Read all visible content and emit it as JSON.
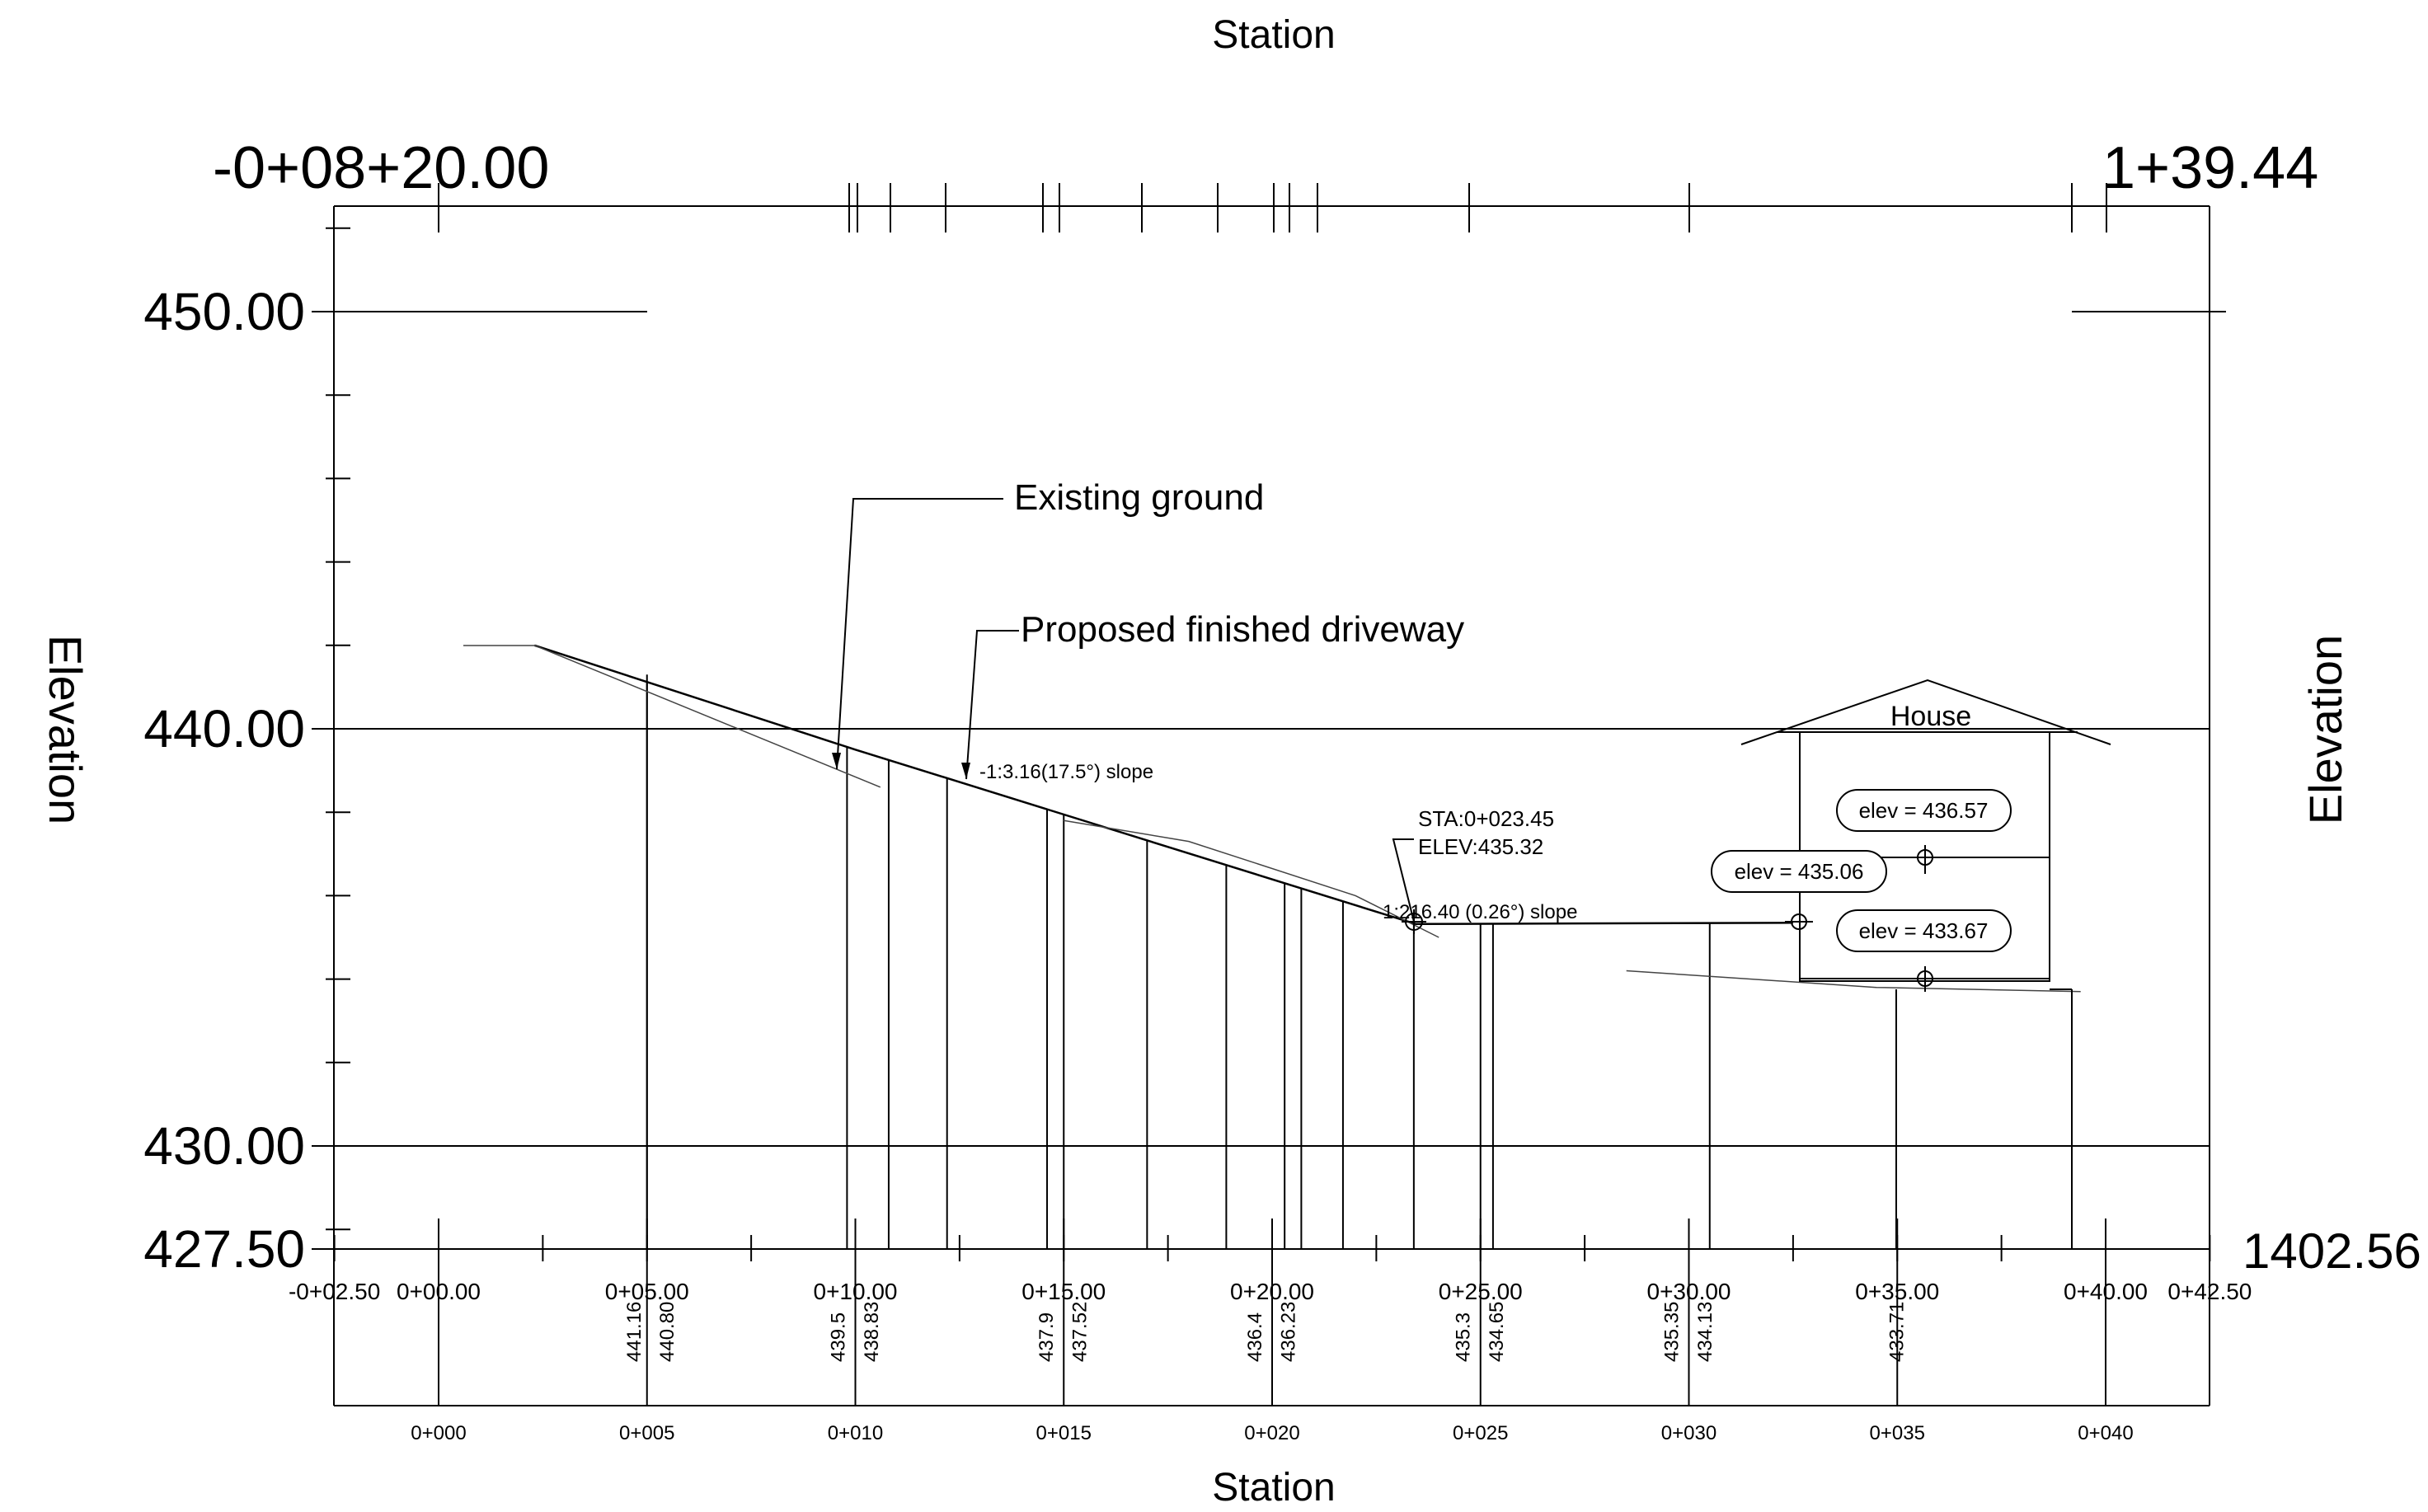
{
  "axes": {
    "top_title": "Station",
    "bottom_title": "Station",
    "left_title": "Elevation",
    "right_title": "Elevation",
    "top_left_label": "-0+08+20.00",
    "top_right_label": "1+39.44",
    "right_bottom_label": "1402.56",
    "elevation_labels": [
      "450.00",
      "440.00",
      "430.00",
      "427.50"
    ],
    "station_labels": [
      "-0+02.50",
      "0+00.00",
      "0+05.00",
      "0+10.00",
      "0+15.00",
      "0+20.00",
      "0+25.00",
      "0+30.00",
      "0+35.00",
      "0+40.00",
      "0+42.50"
    ],
    "band_station_labels": [
      "0+000",
      "0+005",
      "0+010",
      "0+015",
      "0+020",
      "0+025",
      "0+030",
      "0+035",
      "0+040"
    ]
  },
  "elevation_band": [
    {
      "station": 5.0,
      "text": "441.16"
    },
    {
      "station": 5.8,
      "text": "440.80"
    },
    {
      "station": 9.9,
      "text": "439.5"
    },
    {
      "station": 10.7,
      "text": "438.83"
    },
    {
      "station": 14.9,
      "text": "437.9"
    },
    {
      "station": 15.7,
      "text": "437.52"
    },
    {
      "station": 19.9,
      "text": "436.4"
    },
    {
      "station": 20.7,
      "text": "436.23"
    },
    {
      "station": 24.9,
      "text": "435.3"
    },
    {
      "station": 25.7,
      "text": "434.65"
    },
    {
      "station": 29.9,
      "text": "435.35"
    },
    {
      "station": 30.7,
      "text": "434.13"
    },
    {
      "station": 35.3,
      "text": "433.71"
    }
  ],
  "annotations": {
    "existing_ground": "Existing ground",
    "proposed_driveway": "Proposed finished driveway",
    "slope_1": "-1:3.16(17.5°) slope",
    "sta_label": "STA:0+023.45",
    "elev_label": "ELEV:435.32",
    "slope_2": "1:216.40 (0.26°) slope",
    "house": "House",
    "elev_tags": [
      "elev = 436.57",
      "elev = 435.06",
      "elev = 433.67"
    ]
  },
  "profile": {
    "proposed": [
      [
        2.3,
        442.0
      ],
      [
        10.0,
        439.5
      ],
      [
        23.45,
        435.32
      ],
      [
        32.5,
        435.35
      ]
    ],
    "existing": [
      [
        2.3,
        442.0
      ],
      [
        10.6,
        438.6
      ]
    ],
    "existing_2": [
      [
        15.0,
        437.8
      ],
      [
        18.0,
        437.3
      ],
      [
        22.0,
        436.0
      ],
      [
        24.0,
        435.0
      ]
    ],
    "existing_3": [
      [
        28.5,
        434.2
      ],
      [
        34.5,
        433.8
      ],
      [
        39.4,
        433.7
      ]
    ]
  }
}
